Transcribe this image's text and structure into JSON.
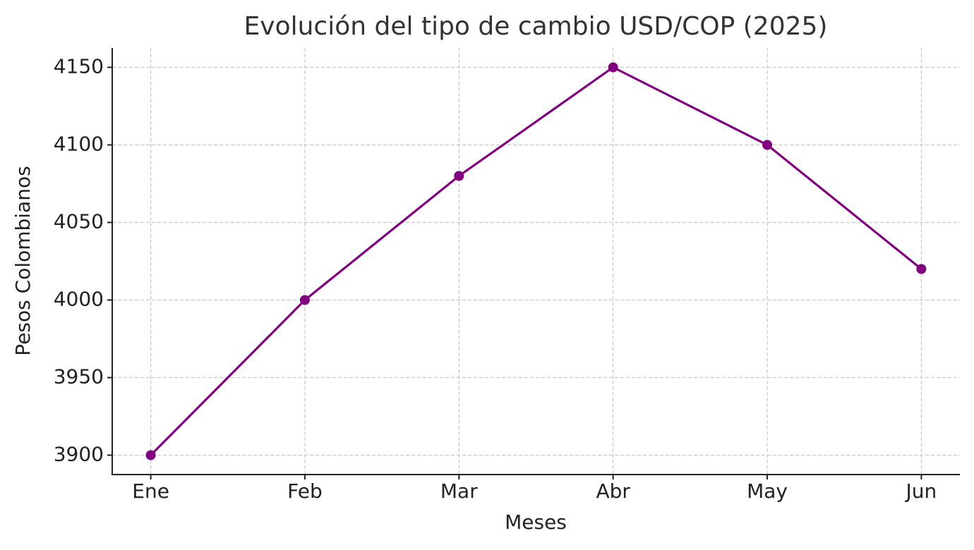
{
  "chart_data": {
    "type": "line",
    "title": "Evolución del tipo de cambio USD/COP (2025)",
    "x_label": "Meses",
    "y_label": "Pesos Colombianos",
    "categories": [
      "Ene",
      "Feb",
      "Mar",
      "Abr",
      "May",
      "Jun"
    ],
    "series": [
      {
        "name": "USD/COP",
        "color": "#800080",
        "values": [
          3900,
          4000,
          4080,
          4150,
          4100,
          4020
        ]
      }
    ],
    "ylim": [
      3887.5,
      4162.5
    ],
    "yticks": [
      3900,
      3950,
      4000,
      4050,
      4100,
      4150
    ],
    "grid": true,
    "legend": false
  }
}
